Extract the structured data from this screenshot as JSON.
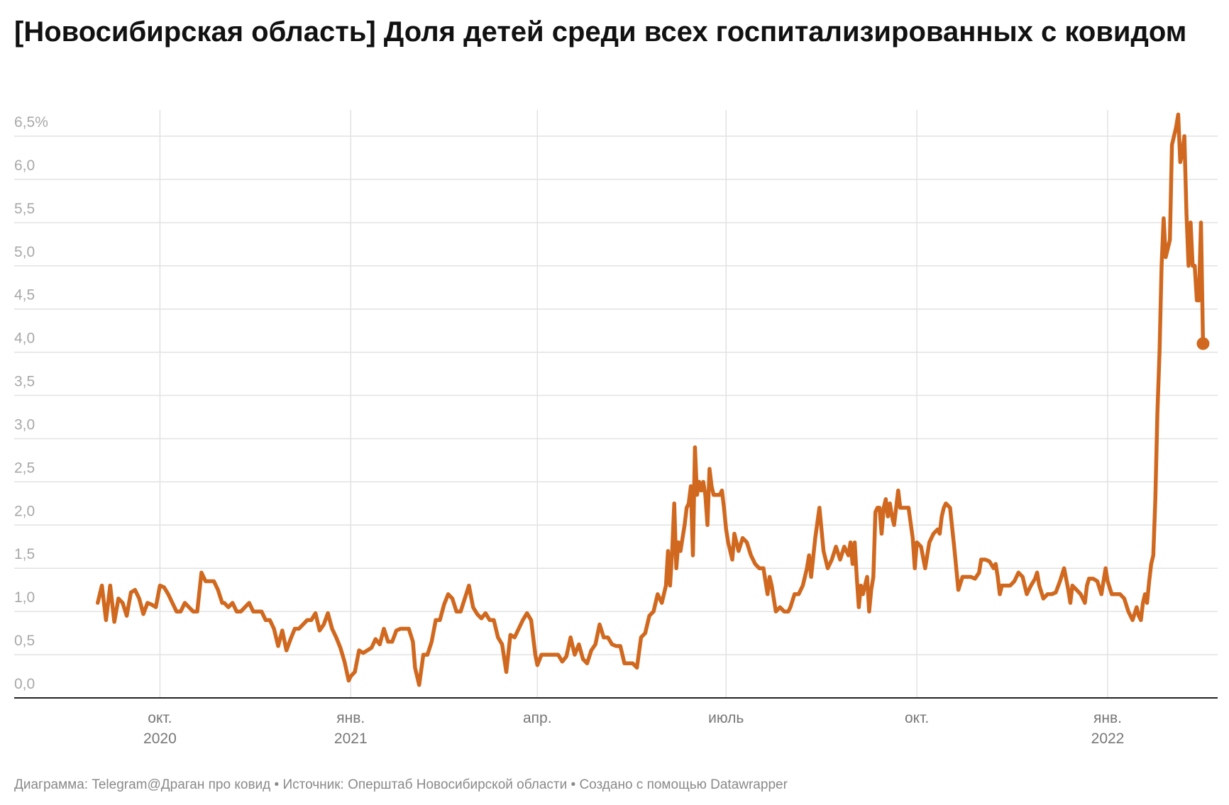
{
  "title": "[Новосибирская область] Доля детей среди всех госпитализированных с ковидом",
  "footer": "Диаграмма: Telegram@Драган про ковид • Источник: Оперштаб Новосибирской области • Создано с помощью Datawrapper",
  "chart_data": {
    "type": "line",
    "title": "[Новосибирская область] Доля детей среди всех госпитализированных с ковидом",
    "xlabel": "",
    "ylabel": "",
    "ylim": [
      0,
      6.5
    ],
    "yticks": [
      "0,0",
      "0,5",
      "1,0",
      "1,5",
      "2,0",
      "2,5",
      "3,0",
      "3,5",
      "4,0",
      "4,5",
      "5,0",
      "5,5",
      "6,0",
      "6,5%"
    ],
    "xticks": [
      {
        "date": "2020-10-01",
        "label": "окт.",
        "year": "2020"
      },
      {
        "date": "2021-01-01",
        "label": "янв.",
        "year": "2021"
      },
      {
        "date": "2021-04-01",
        "label": "апр.",
        "year": ""
      },
      {
        "date": "2021-07-01",
        "label": "июль",
        "year": ""
      },
      {
        "date": "2021-10-01",
        "label": "окт.",
        "year": ""
      },
      {
        "date": "2022-01-01",
        "label": "янв.",
        "year": "2022"
      }
    ],
    "grid": true,
    "line_color": "#d0691f",
    "end_marker": true,
    "points": [
      [
        "2020-09-01",
        1.1
      ],
      [
        "2020-09-03",
        1.3
      ],
      [
        "2020-09-05",
        0.9
      ],
      [
        "2020-09-07",
        1.3
      ],
      [
        "2020-09-09",
        0.88
      ],
      [
        "2020-09-11",
        1.15
      ],
      [
        "2020-09-13",
        1.1
      ],
      [
        "2020-09-15",
        0.95
      ],
      [
        "2020-09-17",
        1.22
      ],
      [
        "2020-09-19",
        1.25
      ],
      [
        "2020-09-21",
        1.15
      ],
      [
        "2020-09-23",
        0.97
      ],
      [
        "2020-09-25",
        1.1
      ],
      [
        "2020-09-27",
        1.08
      ],
      [
        "2020-09-29",
        1.05
      ],
      [
        "2020-10-01",
        1.3
      ],
      [
        "2020-10-03",
        1.28
      ],
      [
        "2020-10-05",
        1.2
      ],
      [
        "2020-10-07",
        1.1
      ],
      [
        "2020-10-09",
        1.0
      ],
      [
        "2020-10-11",
        1.0
      ],
      [
        "2020-10-13",
        1.1
      ],
      [
        "2020-10-15",
        1.05
      ],
      [
        "2020-10-17",
        1.0
      ],
      [
        "2020-10-19",
        1.0
      ],
      [
        "2020-10-21",
        1.45
      ],
      [
        "2020-10-23",
        1.35
      ],
      [
        "2020-10-25",
        1.35
      ],
      [
        "2020-10-27",
        1.35
      ],
      [
        "2020-10-29",
        1.25
      ],
      [
        "2020-10-31",
        1.1
      ],
      [
        "2020-11-01",
        1.1
      ],
      [
        "2020-11-03",
        1.05
      ],
      [
        "2020-11-05",
        1.1
      ],
      [
        "2020-11-07",
        1.0
      ],
      [
        "2020-11-09",
        1.0
      ],
      [
        "2020-11-11",
        1.05
      ],
      [
        "2020-11-13",
        1.1
      ],
      [
        "2020-11-15",
        1.0
      ],
      [
        "2020-11-17",
        1.0
      ],
      [
        "2020-11-19",
        1.0
      ],
      [
        "2020-11-21",
        0.9
      ],
      [
        "2020-11-23",
        0.9
      ],
      [
        "2020-11-25",
        0.8
      ],
      [
        "2020-11-27",
        0.6
      ],
      [
        "2020-11-29",
        0.78
      ],
      [
        "2020-12-01",
        0.55
      ],
      [
        "2020-12-03",
        0.68
      ],
      [
        "2020-12-05",
        0.8
      ],
      [
        "2020-12-07",
        0.8
      ],
      [
        "2020-12-09",
        0.85
      ],
      [
        "2020-12-11",
        0.9
      ],
      [
        "2020-12-13",
        0.9
      ],
      [
        "2020-12-15",
        0.98
      ],
      [
        "2020-12-17",
        0.78
      ],
      [
        "2020-12-19",
        0.85
      ],
      [
        "2020-12-21",
        0.98
      ],
      [
        "2020-12-23",
        0.8
      ],
      [
        "2020-12-25",
        0.7
      ],
      [
        "2020-12-27",
        0.58
      ],
      [
        "2020-12-29",
        0.42
      ],
      [
        "2020-12-31",
        0.2
      ],
      [
        "2021-01-01",
        0.25
      ],
      [
        "2021-01-03",
        0.3
      ],
      [
        "2021-01-05",
        0.55
      ],
      [
        "2021-01-07",
        0.52
      ],
      [
        "2021-01-09",
        0.55
      ],
      [
        "2021-01-11",
        0.58
      ],
      [
        "2021-01-13",
        0.68
      ],
      [
        "2021-01-15",
        0.62
      ],
      [
        "2021-01-17",
        0.8
      ],
      [
        "2021-01-19",
        0.65
      ],
      [
        "2021-01-21",
        0.65
      ],
      [
        "2021-01-23",
        0.78
      ],
      [
        "2021-01-25",
        0.8
      ],
      [
        "2021-01-27",
        0.8
      ],
      [
        "2021-01-29",
        0.8
      ],
      [
        "2021-01-31",
        0.65
      ],
      [
        "2021-02-01",
        0.35
      ],
      [
        "2021-02-03",
        0.15
      ],
      [
        "2021-02-05",
        0.5
      ],
      [
        "2021-02-07",
        0.5
      ],
      [
        "2021-02-09",
        0.65
      ],
      [
        "2021-02-11",
        0.9
      ],
      [
        "2021-02-13",
        0.9
      ],
      [
        "2021-02-15",
        1.08
      ],
      [
        "2021-02-17",
        1.2
      ],
      [
        "2021-02-19",
        1.15
      ],
      [
        "2021-02-21",
        1.0
      ],
      [
        "2021-02-23",
        1.0
      ],
      [
        "2021-02-25",
        1.15
      ],
      [
        "2021-02-27",
        1.3
      ],
      [
        "2021-03-01",
        1.05
      ],
      [
        "2021-03-03",
        0.97
      ],
      [
        "2021-03-05",
        0.92
      ],
      [
        "2021-03-07",
        0.98
      ],
      [
        "2021-03-09",
        0.9
      ],
      [
        "2021-03-11",
        0.9
      ],
      [
        "2021-03-13",
        0.7
      ],
      [
        "2021-03-15",
        0.62
      ],
      [
        "2021-03-17",
        0.3
      ],
      [
        "2021-03-19",
        0.73
      ],
      [
        "2021-03-21",
        0.7
      ],
      [
        "2021-03-23",
        0.8
      ],
      [
        "2021-03-25",
        0.9
      ],
      [
        "2021-03-27",
        0.98
      ],
      [
        "2021-03-29",
        0.9
      ],
      [
        "2021-03-31",
        0.5
      ],
      [
        "2021-04-01",
        0.38
      ],
      [
        "2021-04-03",
        0.5
      ],
      [
        "2021-04-05",
        0.5
      ],
      [
        "2021-04-07",
        0.5
      ],
      [
        "2021-04-09",
        0.5
      ],
      [
        "2021-04-11",
        0.5
      ],
      [
        "2021-04-13",
        0.42
      ],
      [
        "2021-04-15",
        0.48
      ],
      [
        "2021-04-17",
        0.7
      ],
      [
        "2021-04-19",
        0.5
      ],
      [
        "2021-04-21",
        0.62
      ],
      [
        "2021-04-23",
        0.45
      ],
      [
        "2021-04-25",
        0.4
      ],
      [
        "2021-04-27",
        0.55
      ],
      [
        "2021-04-29",
        0.62
      ],
      [
        "2021-05-01",
        0.85
      ],
      [
        "2021-05-03",
        0.7
      ],
      [
        "2021-05-05",
        0.7
      ],
      [
        "2021-05-07",
        0.62
      ],
      [
        "2021-05-09",
        0.6
      ],
      [
        "2021-05-11",
        0.6
      ],
      [
        "2021-05-13",
        0.4
      ],
      [
        "2021-05-15",
        0.4
      ],
      [
        "2021-05-17",
        0.4
      ],
      [
        "2021-05-19",
        0.35
      ],
      [
        "2021-05-21",
        0.7
      ],
      [
        "2021-05-23",
        0.75
      ],
      [
        "2021-05-25",
        0.95
      ],
      [
        "2021-05-27",
        1.0
      ],
      [
        "2021-05-29",
        1.2
      ],
      [
        "2021-05-31",
        1.1
      ],
      [
        "2021-06-01",
        1.2
      ],
      [
        "2021-06-02",
        1.3
      ],
      [
        "2021-06-03",
        1.7
      ],
      [
        "2021-06-04",
        1.3
      ],
      [
        "2021-06-05",
        1.7
      ],
      [
        "2021-06-06",
        2.25
      ],
      [
        "2021-06-07",
        1.5
      ],
      [
        "2021-06-08",
        1.8
      ],
      [
        "2021-06-09",
        1.7
      ],
      [
        "2021-06-10",
        1.85
      ],
      [
        "2021-06-11",
        2.0
      ],
      [
        "2021-06-12",
        2.2
      ],
      [
        "2021-06-13",
        2.25
      ],
      [
        "2021-06-14",
        2.45
      ],
      [
        "2021-06-15",
        1.65
      ],
      [
        "2021-06-16",
        2.9
      ],
      [
        "2021-06-17",
        2.35
      ],
      [
        "2021-06-18",
        2.5
      ],
      [
        "2021-06-19",
        2.4
      ],
      [
        "2021-06-20",
        2.5
      ],
      [
        "2021-06-21",
        2.35
      ],
      [
        "2021-06-22",
        2.0
      ],
      [
        "2021-06-23",
        2.65
      ],
      [
        "2021-06-24",
        2.45
      ],
      [
        "2021-06-25",
        2.35
      ],
      [
        "2021-06-26",
        2.35
      ],
      [
        "2021-06-27",
        2.35
      ],
      [
        "2021-06-28",
        2.35
      ],
      [
        "2021-06-29",
        2.4
      ],
      [
        "2021-06-30",
        2.2
      ],
      [
        "2021-07-01",
        1.95
      ],
      [
        "2021-07-02",
        1.8
      ],
      [
        "2021-07-03",
        1.7
      ],
      [
        "2021-07-04",
        1.6
      ],
      [
        "2021-07-05",
        1.9
      ],
      [
        "2021-07-06",
        1.8
      ],
      [
        "2021-07-07",
        1.7
      ],
      [
        "2021-07-09",
        1.85
      ],
      [
        "2021-07-11",
        1.8
      ],
      [
        "2021-07-13",
        1.65
      ],
      [
        "2021-07-15",
        1.55
      ],
      [
        "2021-07-17",
        1.5
      ],
      [
        "2021-07-19",
        1.5
      ],
      [
        "2021-07-21",
        1.2
      ],
      [
        "2021-07-22",
        1.4
      ],
      [
        "2021-07-23",
        1.3
      ],
      [
        "2021-07-25",
        1.0
      ],
      [
        "2021-07-27",
        1.05
      ],
      [
        "2021-07-29",
        1.0
      ],
      [
        "2021-07-31",
        1.0
      ],
      [
        "2021-08-01",
        1.05
      ],
      [
        "2021-08-03",
        1.2
      ],
      [
        "2021-08-05",
        1.2
      ],
      [
        "2021-08-07",
        1.3
      ],
      [
        "2021-08-09",
        1.5
      ],
      [
        "2021-08-10",
        1.65
      ],
      [
        "2021-08-11",
        1.4
      ],
      [
        "2021-08-13",
        1.85
      ],
      [
        "2021-08-15",
        2.2
      ],
      [
        "2021-08-17",
        1.7
      ],
      [
        "2021-08-19",
        1.5
      ],
      [
        "2021-08-21",
        1.6
      ],
      [
        "2021-08-23",
        1.75
      ],
      [
        "2021-08-25",
        1.6
      ],
      [
        "2021-08-27",
        1.75
      ],
      [
        "2021-08-29",
        1.65
      ],
      [
        "2021-08-30",
        1.8
      ],
      [
        "2021-08-31",
        1.55
      ],
      [
        "2021-09-01",
        1.8
      ],
      [
        "2021-09-02",
        1.4
      ],
      [
        "2021-09-03",
        1.05
      ],
      [
        "2021-09-04",
        1.3
      ],
      [
        "2021-09-05",
        1.2
      ],
      [
        "2021-09-07",
        1.4
      ],
      [
        "2021-09-08",
        1.0
      ],
      [
        "2021-09-09",
        1.25
      ],
      [
        "2021-09-10",
        1.4
      ],
      [
        "2021-09-11",
        2.15
      ],
      [
        "2021-09-12",
        2.2
      ],
      [
        "2021-09-13",
        2.2
      ],
      [
        "2021-09-14",
        1.9
      ],
      [
        "2021-09-15",
        2.2
      ],
      [
        "2021-09-16",
        2.3
      ],
      [
        "2021-09-17",
        2.1
      ],
      [
        "2021-09-18",
        2.25
      ],
      [
        "2021-09-19",
        2.1
      ],
      [
        "2021-09-20",
        2.0
      ],
      [
        "2021-09-21",
        2.2
      ],
      [
        "2021-09-22",
        2.4
      ],
      [
        "2021-09-23",
        2.2
      ],
      [
        "2021-09-25",
        2.2
      ],
      [
        "2021-09-27",
        2.2
      ],
      [
        "2021-09-29",
        1.85
      ],
      [
        "2021-09-30",
        1.5
      ],
      [
        "2021-10-01",
        1.8
      ],
      [
        "2021-10-03",
        1.75
      ],
      [
        "2021-10-05",
        1.5
      ],
      [
        "2021-10-07",
        1.8
      ],
      [
        "2021-10-09",
        1.9
      ],
      [
        "2021-10-11",
        1.95
      ],
      [
        "2021-10-12",
        1.9
      ],
      [
        "2021-10-13",
        2.1
      ],
      [
        "2021-10-14",
        2.2
      ],
      [
        "2021-10-15",
        2.25
      ],
      [
        "2021-10-17",
        2.2
      ],
      [
        "2021-10-19",
        1.75
      ],
      [
        "2021-10-21",
        1.25
      ],
      [
        "2021-10-23",
        1.4
      ],
      [
        "2021-10-25",
        1.4
      ],
      [
        "2021-10-27",
        1.4
      ],
      [
        "2021-10-29",
        1.38
      ],
      [
        "2021-10-31",
        1.45
      ],
      [
        "2021-11-01",
        1.6
      ],
      [
        "2021-11-03",
        1.6
      ],
      [
        "2021-11-05",
        1.58
      ],
      [
        "2021-11-07",
        1.5
      ],
      [
        "2021-11-08",
        1.55
      ],
      [
        "2021-11-09",
        1.4
      ],
      [
        "2021-11-10",
        1.2
      ],
      [
        "2021-11-11",
        1.3
      ],
      [
        "2021-11-13",
        1.3
      ],
      [
        "2021-11-15",
        1.3
      ],
      [
        "2021-11-17",
        1.35
      ],
      [
        "2021-11-19",
        1.45
      ],
      [
        "2021-11-21",
        1.4
      ],
      [
        "2021-11-23",
        1.2
      ],
      [
        "2021-11-25",
        1.3
      ],
      [
        "2021-11-27",
        1.38
      ],
      [
        "2021-11-28",
        1.45
      ],
      [
        "2021-11-29",
        1.3
      ],
      [
        "2021-12-01",
        1.15
      ],
      [
        "2021-12-03",
        1.2
      ],
      [
        "2021-12-05",
        1.2
      ],
      [
        "2021-12-07",
        1.22
      ],
      [
        "2021-12-09",
        1.35
      ],
      [
        "2021-12-11",
        1.5
      ],
      [
        "2021-12-13",
        1.25
      ],
      [
        "2021-12-14",
        1.1
      ],
      [
        "2021-12-15",
        1.3
      ],
      [
        "2021-12-17",
        1.25
      ],
      [
        "2021-12-19",
        1.2
      ],
      [
        "2021-12-21",
        1.1
      ],
      [
        "2021-12-22",
        1.3
      ],
      [
        "2021-12-23",
        1.38
      ],
      [
        "2021-12-25",
        1.38
      ],
      [
        "2021-12-27",
        1.35
      ],
      [
        "2021-12-29",
        1.2
      ],
      [
        "2021-12-31",
        1.5
      ],
      [
        "2022-01-01",
        1.35
      ],
      [
        "2022-01-03",
        1.2
      ],
      [
        "2022-01-05",
        1.2
      ],
      [
        "2022-01-07",
        1.2
      ],
      [
        "2022-01-09",
        1.15
      ],
      [
        "2022-01-11",
        1.0
      ],
      [
        "2022-01-13",
        0.9
      ],
      [
        "2022-01-15",
        1.05
      ],
      [
        "2022-01-16",
        0.95
      ],
      [
        "2022-01-17",
        0.9
      ],
      [
        "2022-01-18",
        1.1
      ],
      [
        "2022-01-19",
        1.2
      ],
      [
        "2022-01-20",
        1.1
      ],
      [
        "2022-01-21",
        1.35
      ],
      [
        "2022-01-22",
        1.55
      ],
      [
        "2022-01-23",
        1.65
      ],
      [
        "2022-01-24",
        2.3
      ],
      [
        "2022-01-25",
        3.3
      ],
      [
        "2022-01-26",
        4.0
      ],
      [
        "2022-01-27",
        5.0
      ],
      [
        "2022-01-28",
        5.55
      ],
      [
        "2022-01-29",
        5.1
      ],
      [
        "2022-01-30",
        5.2
      ],
      [
        "2022-01-31",
        5.3
      ],
      [
        "2022-02-01",
        6.4
      ],
      [
        "2022-02-02",
        6.5
      ],
      [
        "2022-02-03",
        6.6
      ],
      [
        "2022-02-04",
        6.75
      ],
      [
        "2022-02-05",
        6.2
      ],
      [
        "2022-02-06",
        6.3
      ],
      [
        "2022-02-07",
        6.5
      ],
      [
        "2022-02-08",
        5.6
      ],
      [
        "2022-02-09",
        5.0
      ],
      [
        "2022-02-10",
        5.5
      ],
      [
        "2022-02-11",
        5.0
      ],
      [
        "2022-02-12",
        5.0
      ],
      [
        "2022-02-13",
        4.6
      ],
      [
        "2022-02-14",
        4.6
      ],
      [
        "2022-02-15",
        5.5
      ],
      [
        "2022-02-16",
        4.1
      ]
    ]
  }
}
